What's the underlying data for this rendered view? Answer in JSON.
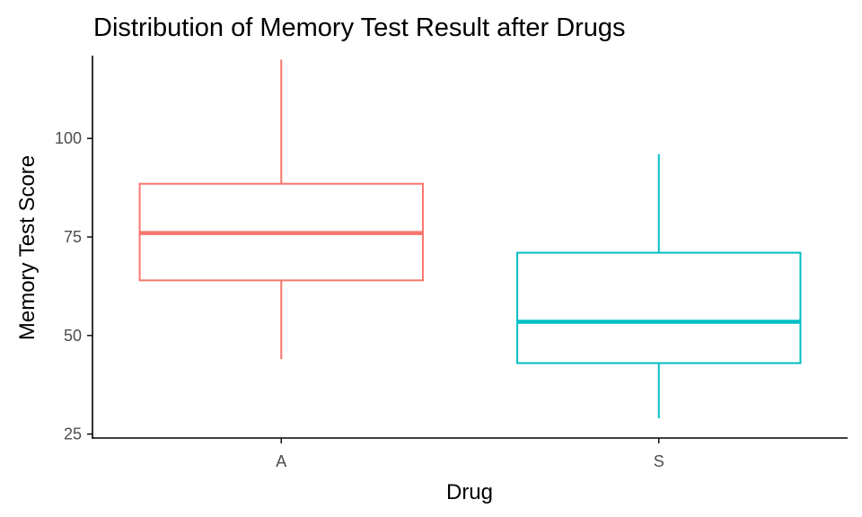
{
  "chart_data": {
    "type": "boxplot",
    "title": "Distribution of Memory Test Result after Drugs",
    "xlabel": "Drug",
    "ylabel": "Memory Test Score",
    "ylim": [
      24,
      121
    ],
    "yticks": [
      25,
      50,
      75,
      100
    ],
    "grid": false,
    "legend": "none",
    "categories": [
      "A",
      "S"
    ],
    "boxes": [
      {
        "category": "A",
        "min": 44,
        "q1": 64,
        "median": 76,
        "q3": 88.5,
        "max": 120,
        "color": "#F8766D"
      },
      {
        "category": "S",
        "min": 29,
        "q1": 43,
        "median": 53.5,
        "q3": 71,
        "max": 96,
        "color": "#00BFC4"
      }
    ]
  }
}
